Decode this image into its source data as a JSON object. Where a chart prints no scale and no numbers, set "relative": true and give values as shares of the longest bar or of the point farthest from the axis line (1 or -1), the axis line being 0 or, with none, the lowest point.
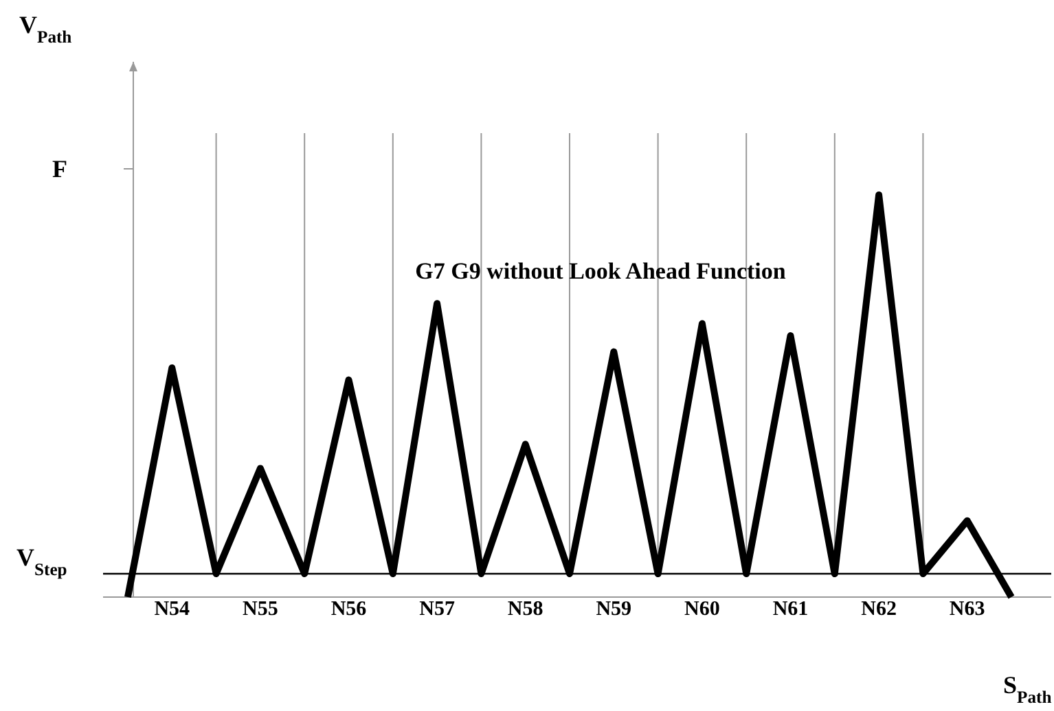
{
  "chart_data": {
    "type": "line",
    "relative": true,
    "grid": "x",
    "xlabel": "S$_{Path}$",
    "annotations": [
      "G7 G9 without Look Ahead Function",
      "F",
      "V$_{Path}$"
    ],
    "categories": [
      null,
      "N54",
      null,
      "N55",
      null,
      "N56",
      null,
      "N57",
      null,
      "N58",
      null,
      "N59",
      null,
      "N60",
      null,
      "N61",
      null,
      "N62",
      null,
      "N63",
      null
    ],
    "ref_lines": [
      {
        "axis": "y",
        "value": 0.058,
        "label": "V$_{Step}$",
        "color": "#000000"
      }
    ],
    "series": [
      {
        "color": "#000000",
        "values": [
          0,
          0.57,
          0.058,
          0.32,
          0.058,
          0.54,
          0.058,
          0.73,
          0.058,
          0.38,
          0.058,
          0.61,
          0.058,
          0.68,
          0.058,
          0.65,
          0.058,
          1,
          0.058,
          0.19,
          0
        ]
      }
    ]
  }
}
